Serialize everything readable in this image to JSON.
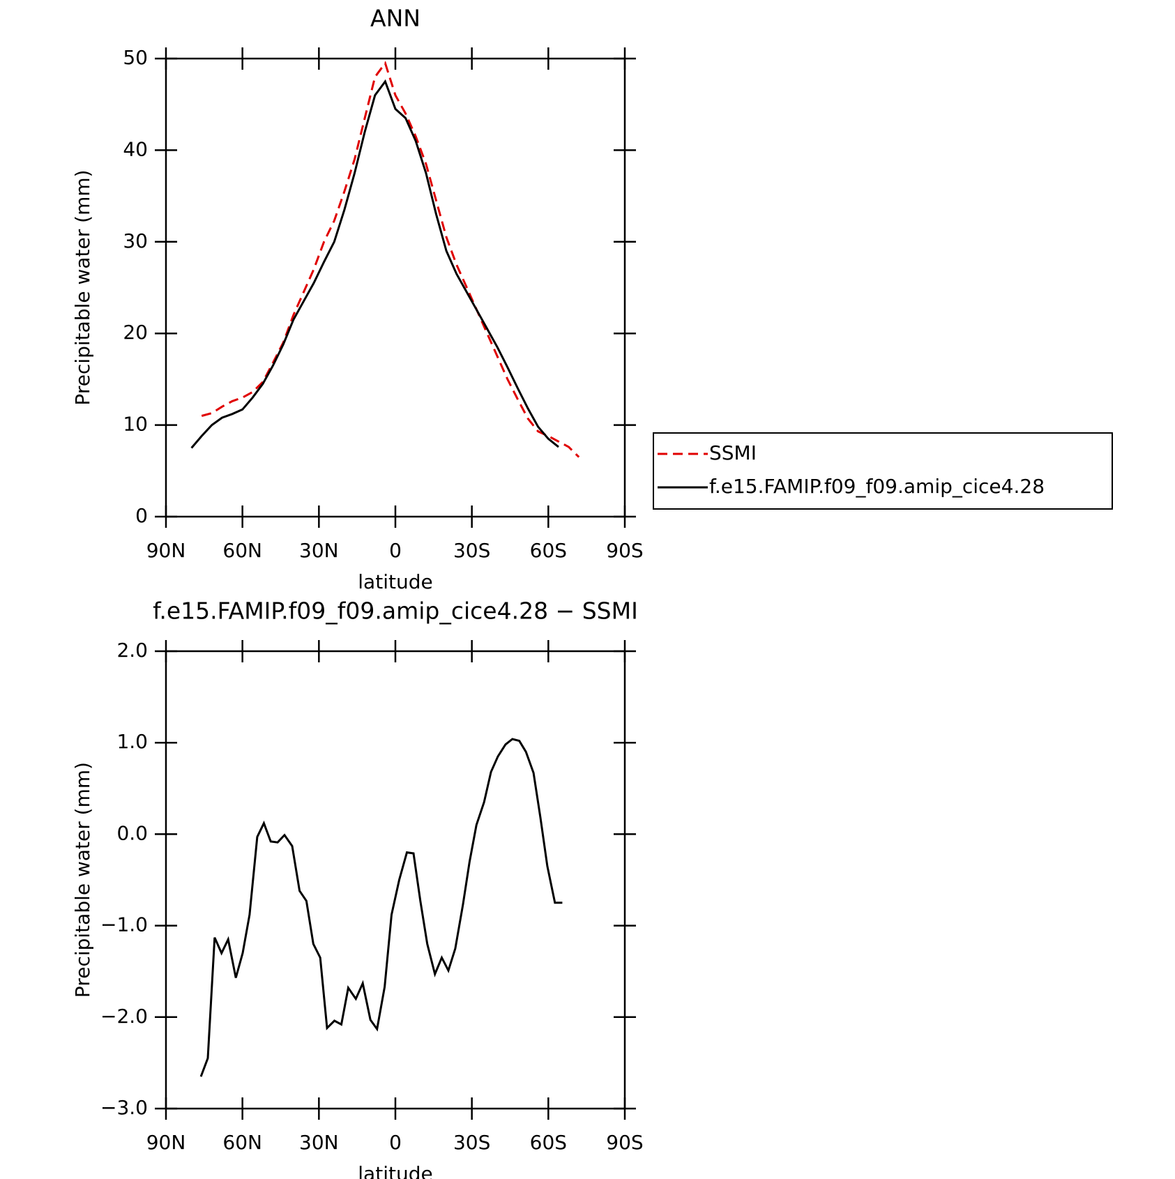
{
  "chart_data": [
    {
      "type": "line",
      "title": "ANN",
      "x_label": "latitude",
      "y_label": "Precipitable water (mm)",
      "x": [
        80,
        76,
        72,
        68,
        64,
        60,
        56,
        52,
        48,
        44,
        40,
        36,
        32,
        28,
        24,
        20,
        16,
        12,
        8,
        4,
        0,
        -4,
        -8,
        -12,
        -16,
        -20,
        -24,
        -28,
        -32,
        -36,
        -40,
        -44,
        -48,
        -52,
        -56,
        -60,
        -64,
        -68,
        -72
      ],
      "xlim": [
        90,
        -90
      ],
      "xticks": [
        {
          "value": 90,
          "label": "90N"
        },
        {
          "value": 60,
          "label": "60N"
        },
        {
          "value": 30,
          "label": "30N"
        },
        0,
        {
          "value": -30,
          "label": "30S"
        },
        {
          "value": -60,
          "label": "60S"
        },
        {
          "value": -90,
          "label": "90S"
        }
      ],
      "ylim": [
        0,
        50
      ],
      "yticks": [
        0,
        10,
        20,
        30,
        40,
        50
      ],
      "legend": "right",
      "series": [
        {
          "name": "SSMI",
          "color": "#e00000",
          "line_style": "dashed",
          "values": [
            null,
            11.0,
            11.3,
            12.0,
            12.6,
            13.0,
            13.6,
            14.7,
            16.8,
            19.0,
            22.0,
            24.5,
            27.0,
            30.0,
            32.3,
            35.5,
            39.0,
            43.5,
            48.0,
            49.5,
            46.0,
            44.0,
            41.5,
            38.5,
            34.5,
            30.5,
            27.5,
            25.0,
            22.5,
            20.0,
            17.5,
            15.0,
            12.8,
            10.7,
            9.3,
            8.8,
            8.2,
            7.6,
            6.5
          ]
        },
        {
          "name": "f.e15.FAMIP.f09_f09.amip_cice4.28",
          "color": "#000000",
          "line_style": "solid",
          "values": [
            7.5,
            8.8,
            10.0,
            10.8,
            11.2,
            11.7,
            13.0,
            14.5,
            16.5,
            18.8,
            21.5,
            23.5,
            25.5,
            27.8,
            30.0,
            33.5,
            37.5,
            42.0,
            46.0,
            47.5,
            44.5,
            43.5,
            41.0,
            37.5,
            33.0,
            29.0,
            26.5,
            24.5,
            22.5,
            20.5,
            18.5,
            16.3,
            14.0,
            11.8,
            9.8,
            8.5,
            7.6,
            null,
            null
          ]
        }
      ]
    },
    {
      "type": "line",
      "title": "f.e15.FAMIP.f09_f09.amip_cice4.28 − SSMI",
      "x_label": "latitude",
      "y_label": "Precipitable water (mm)",
      "x": [
        76.3,
        73.6,
        70.9,
        68.2,
        65.6,
        62.6,
        59.9,
        57.2,
        54.2,
        51.6,
        48.9,
        46.2,
        43.5,
        40.5,
        37.6,
        34.9,
        32.2,
        29.5,
        26.8,
        23.9,
        21.2,
        18.5,
        15.5,
        12.8,
        9.8,
        7.2,
        4.2,
        1.5,
        -1.5,
        -4.5,
        -7.1,
        -9.8,
        -12.5,
        -15.5,
        -18.2,
        -20.8,
        -23.5,
        -26.5,
        -29.1,
        -31.8,
        -34.8,
        -37.5,
        -40.2,
        -43.2,
        -45.9,
        -48.6,
        -51.2,
        -54.2,
        -56.9,
        -59.6,
        -62.6,
        -65.5
      ],
      "xlim": [
        90,
        -90
      ],
      "xticks": [
        {
          "value": 90,
          "label": "90N"
        },
        {
          "value": 60,
          "label": "60N"
        },
        {
          "value": 30,
          "label": "30N"
        },
        0,
        {
          "value": -30,
          "label": "30S"
        },
        {
          "value": -60,
          "label": "60S"
        },
        {
          "value": -90,
          "label": "90S"
        }
      ],
      "ylim": [
        -3,
        2
      ],
      "yticks": [
        {
          "value": -3,
          "label": "−3.0"
        },
        {
          "value": -2,
          "label": "−2.0"
        },
        {
          "value": -1,
          "label": "−1.0"
        },
        {
          "value": 0,
          "label": "0.0"
        },
        {
          "value": 1,
          "label": "1.0"
        },
        {
          "value": 2,
          "label": "2.0"
        }
      ],
      "series": [
        {
          "color": "#000000",
          "line_style": "solid",
          "values": [
            -2.65,
            -2.45,
            -1.13,
            -1.3,
            -1.15,
            -1.57,
            -1.3,
            -0.88,
            -0.03,
            0.12,
            -0.08,
            -0.09,
            -0.01,
            -0.13,
            -0.62,
            -0.73,
            -1.2,
            -1.35,
            -2.12,
            -2.04,
            -2.08,
            -1.68,
            -1.8,
            -1.63,
            -2.03,
            -2.13,
            -1.67,
            -0.88,
            -0.5,
            -0.2,
            -0.21,
            -0.73,
            -1.2,
            -1.53,
            -1.35,
            -1.49,
            -1.25,
            -0.77,
            -0.3,
            0.1,
            0.35,
            0.68,
            0.85,
            0.98,
            1.04,
            1.02,
            0.9,
            0.67,
            0.18,
            -0.35,
            -0.75,
            -0.75
          ]
        }
      ]
    }
  ]
}
